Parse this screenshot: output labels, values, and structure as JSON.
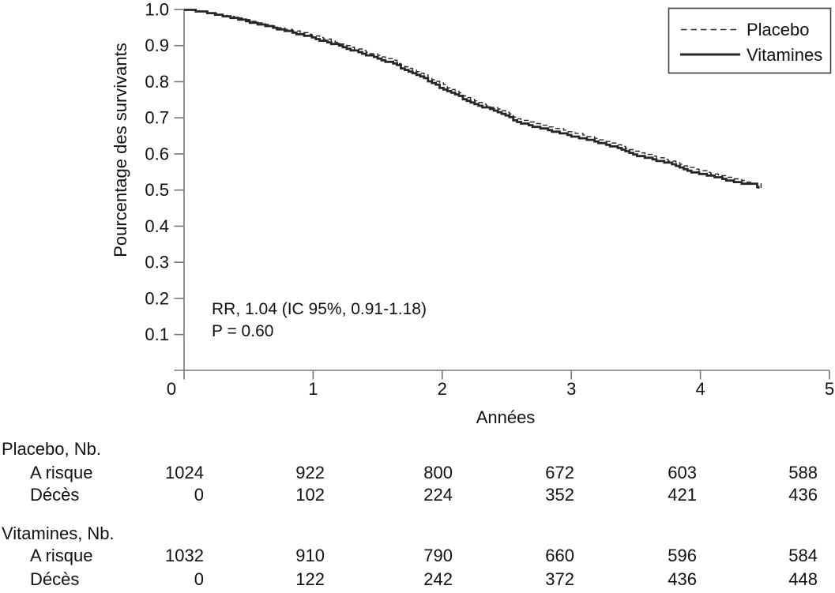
{
  "chart_data": {
    "type": "line",
    "subtype": "kaplan-meier-survival",
    "title": "",
    "xlabel": "Années",
    "ylabel": "Pourcentage des survivants",
    "xlim": [
      0,
      5
    ],
    "ylim": [
      0,
      1.0
    ],
    "x_tick_labels": [
      "0",
      "1",
      "2",
      "3",
      "4",
      "5"
    ],
    "x_tick_values": [
      0,
      1,
      2,
      3,
      4,
      5
    ],
    "y_tick_labels": [
      "0.1",
      "0.2",
      "0.3",
      "0.4",
      "0.5",
      "0.6",
      "0.7",
      "0.8",
      "0.9",
      "1.0"
    ],
    "y_tick_values": [
      0.1,
      0.2,
      0.3,
      0.4,
      0.5,
      0.6,
      0.7,
      0.8,
      0.9,
      1.0
    ],
    "grid": false,
    "legend_position": "top-right",
    "annotations": [
      "RR, 1.04 (IC 95%, 0.91-1.18)",
      "P = 0.60"
    ],
    "series": [
      {
        "name": "Placebo",
        "style": "dashed",
        "points": [
          [
            0,
            1.0
          ],
          [
            0.1,
            0.997
          ],
          [
            0.25,
            0.988
          ],
          [
            0.4,
            0.977
          ],
          [
            0.6,
            0.961
          ],
          [
            0.8,
            0.945
          ],
          [
            1.0,
            0.928
          ],
          [
            1.2,
            0.906
          ],
          [
            1.4,
            0.884
          ],
          [
            1.6,
            0.861
          ],
          [
            1.8,
            0.828
          ],
          [
            2.0,
            0.792
          ],
          [
            2.25,
            0.745
          ],
          [
            2.45,
            0.722
          ],
          [
            2.6,
            0.695
          ],
          [
            2.8,
            0.678
          ],
          [
            3.0,
            0.661
          ],
          [
            3.15,
            0.647
          ],
          [
            3.3,
            0.632
          ],
          [
            3.5,
            0.607
          ],
          [
            3.65,
            0.592
          ],
          [
            3.8,
            0.578
          ],
          [
            3.95,
            0.558
          ],
          [
            4.1,
            0.545
          ],
          [
            4.25,
            0.532
          ],
          [
            4.35,
            0.524
          ],
          [
            4.42,
            0.519
          ],
          [
            4.46,
            0.515
          ],
          [
            4.47,
            0.501
          ]
        ]
      },
      {
        "name": "Vitamines",
        "style": "solid",
        "points": [
          [
            0,
            1.0
          ],
          [
            0.1,
            0.996
          ],
          [
            0.25,
            0.986
          ],
          [
            0.4,
            0.974
          ],
          [
            0.6,
            0.957
          ],
          [
            0.8,
            0.94
          ],
          [
            1.0,
            0.921
          ],
          [
            1.2,
            0.899
          ],
          [
            1.4,
            0.876
          ],
          [
            1.6,
            0.852
          ],
          [
            1.8,
            0.82
          ],
          [
            2.0,
            0.781
          ],
          [
            2.25,
            0.738
          ],
          [
            2.45,
            0.713
          ],
          [
            2.6,
            0.686
          ],
          [
            2.8,
            0.668
          ],
          [
            3.0,
            0.65
          ],
          [
            3.15,
            0.637
          ],
          [
            3.3,
            0.623
          ],
          [
            3.5,
            0.597
          ],
          [
            3.65,
            0.583
          ],
          [
            3.8,
            0.57
          ],
          [
            3.95,
            0.548
          ],
          [
            4.1,
            0.538
          ],
          [
            4.25,
            0.523
          ],
          [
            4.3,
            0.519
          ],
          [
            4.42,
            0.519
          ],
          [
            4.45,
            0.505
          ]
        ]
      }
    ]
  },
  "risk_table": {
    "time_points": [
      0,
      1,
      2,
      3,
      4,
      5
    ],
    "groups": [
      {
        "label": "Placebo, Nb.",
        "rows": [
          {
            "label": "A risque",
            "values": [
              "1024",
              "922",
              "800",
              "672",
              "603",
              "588"
            ]
          },
          {
            "label": "Décès",
            "values": [
              "0",
              "102",
              "224",
              "352",
              "421",
              "436"
            ]
          }
        ]
      },
      {
        "label": "Vitamines, Nb.",
        "rows": [
          {
            "label": "A risque",
            "values": [
              "1032",
              "910",
              "790",
              "660",
              "596",
              "584"
            ]
          },
          {
            "label": "Décès",
            "values": [
              "0",
              "122",
              "242",
              "372",
              "436",
              "448"
            ]
          }
        ]
      }
    ]
  },
  "colors": {
    "background": "#ffffff",
    "text": "#111111",
    "axis": "#757575",
    "curve": "#262626",
    "legend_border": "#3d3d3d"
  }
}
